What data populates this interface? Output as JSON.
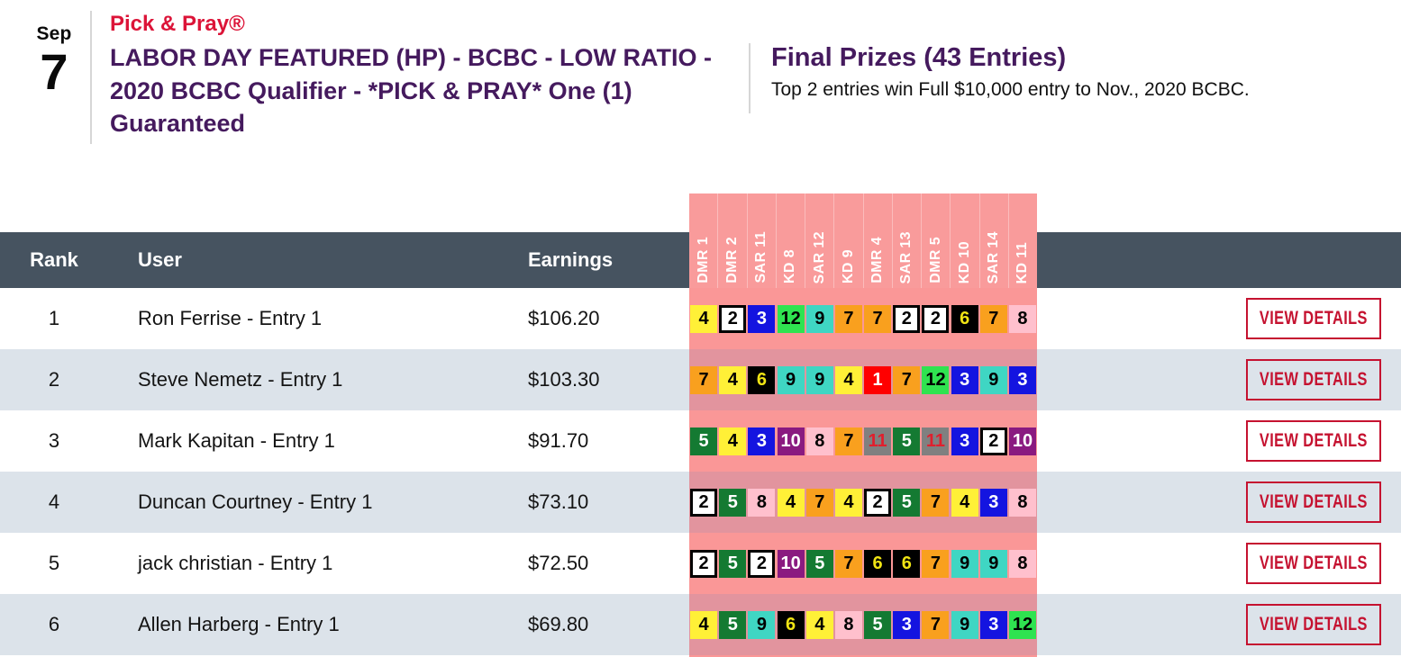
{
  "event": {
    "month": "Sep",
    "day": "7",
    "contest_type": "Pick & Pray®",
    "title": "LABOR DAY FEATURED (HP) - BCBC - LOW RATIO - 2020 BCBC Qualifier - *PICK & PRAY* One (1) Guaranteed"
  },
  "prizes": {
    "title": "Final Prizes (43 Entries)",
    "description": "Top 2 entries win Full $10,000 entry to Nov., 2020 BCBC."
  },
  "table": {
    "columns": {
      "rank": "Rank",
      "user": "User",
      "earnings": "Earnings"
    },
    "races": [
      "DMR 1",
      "DMR 2",
      "SAR 11",
      "KD 8",
      "SAR 12",
      "KD 9",
      "DMR 4",
      "SAR 13",
      "DMR 5",
      "KD 10",
      "SAR 14",
      "KD 11"
    ],
    "view_details_label": "VIEW DETAILS",
    "rows": [
      {
        "rank": "1",
        "user": "Ron Ferrise - Entry 1",
        "earnings": "$106.20",
        "picks": [
          4,
          2,
          3,
          12,
          9,
          7,
          7,
          2,
          2,
          6,
          7,
          8
        ]
      },
      {
        "rank": "2",
        "user": "Steve Nemetz - Entry 1",
        "earnings": "$103.30",
        "picks": [
          7,
          4,
          6,
          9,
          9,
          4,
          1,
          7,
          12,
          3,
          9,
          3
        ]
      },
      {
        "rank": "3",
        "user": "Mark Kapitan - Entry 1",
        "earnings": "$91.70",
        "picks": [
          5,
          4,
          3,
          10,
          8,
          7,
          11,
          5,
          11,
          3,
          2,
          10
        ]
      },
      {
        "rank": "4",
        "user": "Duncan Courtney - Entry 1",
        "earnings": "$73.10",
        "picks": [
          2,
          5,
          8,
          4,
          7,
          4,
          2,
          5,
          7,
          4,
          3,
          8
        ]
      },
      {
        "rank": "5",
        "user": "jack christian - Entry 1",
        "earnings": "$72.50",
        "picks": [
          2,
          5,
          2,
          10,
          5,
          7,
          6,
          6,
          7,
          9,
          9,
          8
        ]
      },
      {
        "rank": "6",
        "user": "Allen Harberg - Entry 1",
        "earnings": "$69.80",
        "picks": [
          4,
          5,
          9,
          6,
          4,
          8,
          5,
          3,
          7,
          9,
          3,
          12
        ]
      }
    ]
  },
  "colors": {
    "accent_red": "#dc1438",
    "accent_purple": "#451a5e",
    "button_red": "#c51230",
    "table_header_bg": "#465360",
    "row_stripe_bg": "#dce3ea",
    "race_panel_pink": "#f99b9b",
    "race_panel_divider": "#fbbcbc",
    "picks_bg_on_white_row": "#fa9797",
    "picks_bg_on_stripe_row": "#e2949e",
    "saddle_cloth": {
      "1": {
        "bg": "#ff0000",
        "fg": "#ffffff"
      },
      "2": {
        "bg": "#ffffff",
        "fg": "#000000",
        "border": "#000000"
      },
      "3": {
        "bg": "#1414e0",
        "fg": "#ffffff"
      },
      "4": {
        "bg": "#fff037",
        "fg": "#000000"
      },
      "5": {
        "bg": "#147a32",
        "fg": "#ffffff"
      },
      "6": {
        "bg": "#000000",
        "fg": "#f0e414"
      },
      "7": {
        "bg": "#f9a01e",
        "fg": "#000000"
      },
      "8": {
        "bg": "#ffc0cd",
        "fg": "#000000"
      },
      "9": {
        "bg": "#3fd6c3",
        "fg": "#000000"
      },
      "10": {
        "bg": "#8a1a80",
        "fg": "#ffffff"
      },
      "11": {
        "bg": "#808080",
        "fg": "#e01f2d"
      },
      "12": {
        "bg": "#2fe350",
        "fg": "#000000"
      }
    }
  }
}
